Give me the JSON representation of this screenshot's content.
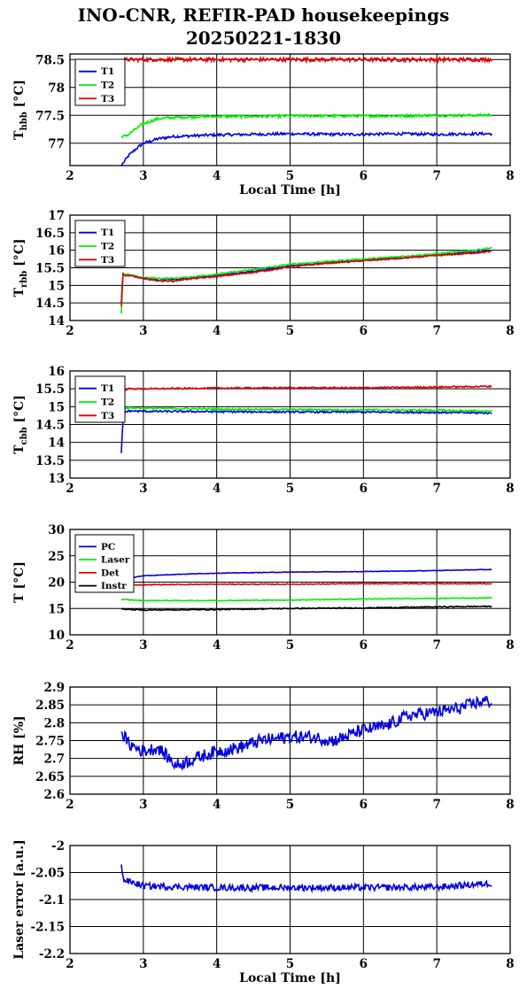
{
  "title": {
    "line1": "INO-CNR, REFIR-PAD housekeepings",
    "line2": "20250221-1830"
  },
  "chart_data": [
    {
      "type": "line",
      "ylabel": "T_hbb [°C]",
      "ylabel_main": "T",
      "ylabel_sub": "hbb",
      "ylabel_unit": "[°C]",
      "xlabel": "Local Time [h]",
      "xlim": [
        2,
        8
      ],
      "ylim": [
        76.6,
        78.6
      ],
      "xticks": [
        "2",
        "3",
        "4",
        "5",
        "6",
        "7",
        "8"
      ],
      "yticks": [
        "77",
        "77.5",
        "78",
        "78.5"
      ],
      "ytick_values": [
        77,
        77.5,
        78,
        78.5
      ],
      "grid": true,
      "legend": "top-left",
      "series": [
        {
          "name": "T1",
          "color": "#0000dd",
          "x": [
            2.7,
            2.8,
            2.9,
            3.0,
            3.2,
            3.4,
            3.6,
            3.8,
            4.0,
            4.5,
            5.0,
            5.5,
            6.0,
            6.5,
            7.0,
            7.5,
            7.75
          ],
          "y": [
            76.6,
            76.78,
            76.9,
            77.0,
            77.08,
            77.12,
            77.13,
            77.14,
            77.15,
            77.16,
            77.17,
            77.16,
            77.16,
            77.17,
            77.16,
            77.17,
            77.17
          ],
          "noise": 0.025
        },
        {
          "name": "T2",
          "color": "#00ee00",
          "x": [
            2.7,
            2.8,
            2.9,
            3.0,
            3.2,
            3.4,
            3.6,
            3.8,
            4.0,
            4.5,
            5.0,
            5.5,
            6.0,
            6.5,
            7.0,
            7.5,
            7.75
          ],
          "y": [
            77.1,
            77.16,
            77.26,
            77.35,
            77.44,
            77.46,
            77.47,
            77.48,
            77.48,
            77.48,
            77.49,
            77.49,
            77.49,
            77.49,
            77.5,
            77.5,
            77.51
          ],
          "noise": 0.025
        },
        {
          "name": "T3",
          "color": "#dd0000",
          "x": [
            2.7,
            3.0,
            4.0,
            5.0,
            6.0,
            7.0,
            7.75
          ],
          "y": [
            78.5,
            78.5,
            78.5,
            78.5,
            78.5,
            78.5,
            78.5
          ],
          "noise": 0.035
        }
      ]
    },
    {
      "type": "line",
      "ylabel": "T_rbb [°C]",
      "ylabel_main": "T",
      "ylabel_sub": "rbb",
      "ylabel_unit": "[°C]",
      "xlabel": "",
      "xlim": [
        2,
        8
      ],
      "ylim": [
        14,
        17
      ],
      "xticks": [
        "2",
        "3",
        "4",
        "5",
        "6",
        "7",
        "8"
      ],
      "yticks": [
        "14",
        "14.5",
        "15",
        "15.5",
        "16",
        "16.5",
        "17"
      ],
      "ytick_values": [
        14,
        14.5,
        15,
        15.5,
        16,
        16.5,
        17
      ],
      "grid": true,
      "legend": "top-left",
      "series": [
        {
          "name": "T1",
          "color": "#0000dd",
          "x": [
            2.7,
            2.72,
            2.75,
            2.8,
            3.0,
            3.2,
            3.4,
            3.6,
            4.0,
            4.5,
            5.0,
            5.5,
            6.0,
            6.5,
            7.0,
            7.5,
            7.75
          ],
          "y": [
            14.5,
            15.35,
            15.3,
            15.3,
            15.2,
            15.15,
            15.17,
            15.2,
            15.28,
            15.4,
            15.55,
            15.65,
            15.72,
            15.78,
            15.87,
            15.95,
            16.0
          ],
          "noise": 0.02
        },
        {
          "name": "T2",
          "color": "#00ee00",
          "x": [
            2.7,
            2.72,
            2.75,
            2.8,
            3.0,
            3.2,
            3.4,
            3.6,
            4.0,
            4.5,
            5.0,
            5.5,
            6.0,
            6.5,
            7.0,
            7.5,
            7.75
          ],
          "y": [
            14.2,
            15.35,
            15.3,
            15.3,
            15.22,
            15.2,
            15.2,
            15.23,
            15.32,
            15.45,
            15.6,
            15.68,
            15.75,
            15.82,
            15.9,
            16.0,
            16.07
          ],
          "noise": 0.02
        },
        {
          "name": "T3",
          "color": "#dd0000",
          "x": [
            2.7,
            2.72,
            2.75,
            2.8,
            3.0,
            3.2,
            3.4,
            3.6,
            4.0,
            4.5,
            5.0,
            5.5,
            6.0,
            6.5,
            7.0,
            7.5,
            7.75
          ],
          "y": [
            14.4,
            15.3,
            15.28,
            15.28,
            15.2,
            15.13,
            15.12,
            15.18,
            15.25,
            15.37,
            15.52,
            15.63,
            15.7,
            15.77,
            15.85,
            15.92,
            15.97
          ],
          "noise": 0.02
        }
      ]
    },
    {
      "type": "line",
      "ylabel": "T_cbb [°C]",
      "ylabel_main": "T",
      "ylabel_sub": "cbb",
      "ylabel_unit": "[°C]",
      "xlabel": "",
      "xlim": [
        2,
        8
      ],
      "ylim": [
        13,
        16
      ],
      "xticks": [
        "2",
        "3",
        "4",
        "5",
        "6",
        "7",
        "8"
      ],
      "yticks": [
        "13",
        "13.5",
        "14",
        "14.5",
        "15",
        "15.5",
        "16"
      ],
      "ytick_values": [
        13,
        13.5,
        14,
        14.5,
        15,
        15.5,
        16
      ],
      "grid": true,
      "legend": "top-left",
      "series": [
        {
          "name": "T1",
          "color": "#0000dd",
          "x": [
            2.7,
            2.72,
            2.75,
            2.8,
            3.0,
            4.0,
            5.0,
            6.0,
            7.0,
            7.75
          ],
          "y": [
            13.7,
            14.6,
            14.85,
            14.88,
            14.87,
            14.86,
            14.85,
            14.85,
            14.84,
            14.82
          ],
          "noise": 0.025
        },
        {
          "name": "T2",
          "color": "#00ee00",
          "x": [
            2.7,
            2.75,
            2.8,
            3.0,
            4.0,
            5.0,
            6.0,
            7.0,
            7.75
          ],
          "y": [
            14.9,
            14.96,
            14.97,
            14.96,
            14.93,
            14.92,
            14.91,
            14.9,
            14.87
          ],
          "noise": 0.025
        },
        {
          "name": "T3",
          "color": "#dd0000",
          "x": [
            2.7,
            2.8,
            3.0,
            4.0,
            5.0,
            6.0,
            7.0,
            7.75
          ],
          "y": [
            15.45,
            15.5,
            15.5,
            15.52,
            15.53,
            15.53,
            15.55,
            15.57
          ],
          "noise": 0.02
        }
      ]
    },
    {
      "type": "line",
      "ylabel": "T [°C]",
      "ylabel_main": "T [°C]",
      "ylabel_sub": "",
      "ylabel_unit": "",
      "xlabel": "",
      "xlim": [
        2,
        8
      ],
      "ylim": [
        10,
        30
      ],
      "xticks": [
        "2",
        "3",
        "4",
        "5",
        "6",
        "7",
        "8"
      ],
      "yticks": [
        "10",
        "15",
        "20",
        "25",
        "30"
      ],
      "ytick_values": [
        10,
        15,
        20,
        25,
        30
      ],
      "grid": true,
      "legend": "top-left",
      "series": [
        {
          "name": "PC",
          "color": "#0000dd",
          "x": [
            2.7,
            3.0,
            3.5,
            4.0,
            5.0,
            6.0,
            7.0,
            7.75
          ],
          "y": [
            20.5,
            21.2,
            21.5,
            21.7,
            21.9,
            22.0,
            22.2,
            22.4
          ],
          "noise": 0.05
        },
        {
          "name": "Laser",
          "color": "#00ee00",
          "x": [
            2.7,
            3.0,
            4.0,
            5.0,
            6.0,
            7.0,
            7.75
          ],
          "y": [
            16.7,
            16.5,
            16.5,
            16.6,
            16.8,
            16.9,
            17.0
          ],
          "noise": 0.08
        },
        {
          "name": "Det",
          "color": "#dd0000",
          "x": [
            2.7,
            3.0,
            4.0,
            5.0,
            6.0,
            7.0,
            7.75
          ],
          "y": [
            19.4,
            19.5,
            19.6,
            19.6,
            19.7,
            19.7,
            19.7
          ],
          "noise": 0.08
        },
        {
          "name": "Instr",
          "color": "#000000",
          "x": [
            2.7,
            3.0,
            4.0,
            5.0,
            6.0,
            7.0,
            7.75
          ],
          "y": [
            14.9,
            14.7,
            14.8,
            15.0,
            15.1,
            15.3,
            15.4
          ],
          "noise": 0.1
        }
      ]
    },
    {
      "type": "line",
      "ylabel": "RH [%]",
      "ylabel_main": "RH [%]",
      "ylabel_sub": "",
      "ylabel_unit": "",
      "xlabel": "",
      "xlim": [
        2,
        8
      ],
      "ylim": [
        2.6,
        2.9
      ],
      "xticks": [
        "2",
        "3",
        "4",
        "5",
        "6",
        "7",
        "8"
      ],
      "yticks": [
        "2.6",
        "2.65",
        "2.7",
        "2.75",
        "2.8",
        "2.85",
        "2.9"
      ],
      "ytick_values": [
        2.6,
        2.65,
        2.7,
        2.75,
        2.8,
        2.85,
        2.9
      ],
      "grid": true,
      "legend": "none",
      "series": [
        {
          "name": "",
          "color": "#0000dd",
          "x": [
            2.7,
            2.8,
            3.0,
            3.2,
            3.45,
            3.7,
            4.0,
            4.3,
            4.6,
            5.0,
            5.3,
            5.6,
            6.0,
            6.3,
            6.6,
            7.0,
            7.3,
            7.6,
            7.75
          ],
          "y": [
            2.775,
            2.74,
            2.72,
            2.73,
            2.68,
            2.7,
            2.72,
            2.73,
            2.75,
            2.76,
            2.76,
            2.75,
            2.78,
            2.79,
            2.82,
            2.83,
            2.84,
            2.86,
            2.86
          ],
          "noise": 0.018
        }
      ]
    },
    {
      "type": "line",
      "ylabel": "Laser error [a.u.]",
      "ylabel_main": "Laser error [a.u.]",
      "ylabel_sub": "",
      "ylabel_unit": "",
      "xlabel": "Local Time [h]",
      "xlim": [
        2,
        8
      ],
      "ylim": [
        -2.2,
        -2
      ],
      "xticks": [
        "2",
        "3",
        "4",
        "5",
        "6",
        "7",
        "8"
      ],
      "yticks": [
        "-2.2",
        "-2.15",
        "-2.1",
        "-2.05",
        "-2"
      ],
      "ytick_values": [
        -2.2,
        -2.15,
        -2.1,
        -2.05,
        -2
      ],
      "grid": true,
      "legend": "none",
      "series": [
        {
          "name": "",
          "color": "#0000dd",
          "x": [
            2.7,
            2.72,
            2.75,
            2.9,
            3.0,
            4.0,
            5.0,
            6.0,
            7.0,
            7.75
          ],
          "y": [
            -2.035,
            -2.06,
            -2.065,
            -2.07,
            -2.075,
            -2.078,
            -2.078,
            -2.078,
            -2.077,
            -2.07
          ],
          "noise": 0.006
        }
      ]
    }
  ]
}
